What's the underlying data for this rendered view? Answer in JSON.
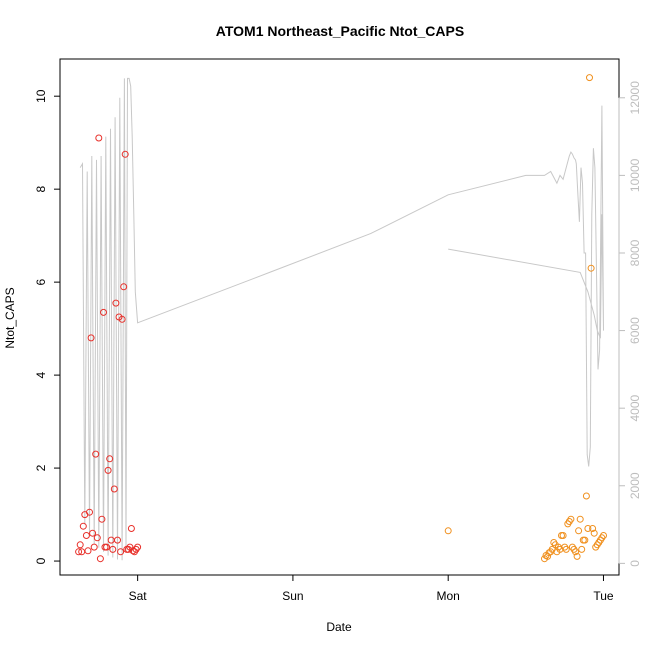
{
  "chart_data": {
    "type": "scatter",
    "title": "ATOM1 Northeast_Pacific Ntot_CAPS",
    "xlabel": "Date",
    "ylabel": "Ntot_CAPS",
    "x_ticks": [
      {
        "label": "Sat",
        "day": 1
      },
      {
        "label": "Sun",
        "day": 2
      },
      {
        "label": "Mon",
        "day": 3
      },
      {
        "label": "Tue",
        "day": 4
      }
    ],
    "xlim_days": [
      0.5,
      4.1
    ],
    "ylim_left": [
      -0.3,
      10.8
    ],
    "y_ticks_left": [
      0,
      2,
      4,
      6,
      8,
      10
    ],
    "ylim_right": [
      -300,
      13000
    ],
    "y_ticks_right": [
      0,
      2000,
      4000,
      6000,
      8000,
      10000,
      12000
    ],
    "colors": {
      "red": "#e8302a",
      "orange": "#f0901e",
      "line": "#c8c8c8",
      "right_axis": "#bdbdbd"
    },
    "series": [
      {
        "color": "red",
        "marker": "circle",
        "x_days": [
          0.62,
          0.63,
          0.64,
          0.65,
          0.66,
          0.67,
          0.68,
          0.69,
          0.7,
          0.71,
          0.72,
          0.73,
          0.74,
          0.75,
          0.76,
          0.77,
          0.78,
          0.79,
          0.8,
          0.81,
          0.82,
          0.83,
          0.84,
          0.85,
          0.86,
          0.87,
          0.88,
          0.89,
          0.9,
          0.91,
          0.92,
          0.93,
          0.94,
          0.95,
          0.96,
          0.97,
          0.98,
          0.99,
          1.0
        ],
        "values": [
          0.2,
          0.35,
          0.2,
          0.75,
          1.0,
          0.55,
          0.22,
          1.05,
          4.8,
          0.6,
          0.3,
          2.3,
          0.5,
          9.1,
          0.05,
          0.9,
          5.35,
          0.3,
          0.3,
          1.95,
          2.2,
          0.45,
          0.25,
          1.55,
          5.55,
          0.45,
          5.25,
          0.2,
          5.2,
          5.9,
          8.75,
          0.25,
          0.25,
          0.3,
          0.7,
          0.22,
          0.2,
          0.25,
          0.3
        ]
      },
      {
        "color": "orange",
        "marker": "circle",
        "x_days": [
          3.0,
          3.62,
          3.63,
          3.64,
          3.65,
          3.66,
          3.67,
          3.68,
          3.69,
          3.7,
          3.71,
          3.72,
          3.73,
          3.74,
          3.75,
          3.76,
          3.77,
          3.78,
          3.79,
          3.8,
          3.81,
          3.82,
          3.83,
          3.84,
          3.85,
          3.86,
          3.87,
          3.88,
          3.89,
          3.9,
          3.91,
          3.92,
          3.93,
          3.94,
          3.95,
          3.96,
          3.97,
          3.98,
          3.99,
          4.0
        ],
        "values": [
          0.65,
          0.05,
          0.12,
          0.1,
          0.18,
          0.2,
          0.25,
          0.4,
          0.35,
          0.2,
          0.3,
          0.25,
          0.55,
          0.55,
          0.3,
          0.25,
          0.8,
          0.85,
          0.9,
          0.3,
          0.25,
          0.2,
          0.1,
          0.65,
          0.9,
          0.25,
          0.45,
          0.45,
          1.4,
          0.7,
          10.4,
          6.3,
          0.7,
          0.6,
          0.3,
          0.35,
          0.4,
          0.45,
          0.5,
          0.55
        ]
      }
    ],
    "line_series": {
      "axis": "right",
      "color": "line",
      "x_days": [
        0.63,
        0.645,
        0.66,
        0.675,
        0.69,
        0.705,
        0.72,
        0.735,
        0.75,
        0.765,
        0.78,
        0.795,
        0.81,
        0.825,
        0.84,
        0.855,
        0.87,
        0.885,
        0.9,
        0.915,
        0.925,
        0.935,
        0.945,
        0.955,
        0.965,
        0.975,
        0.985,
        1.0,
        1.85,
        2.5,
        3.0,
        3.5,
        3.62,
        3.66,
        3.7,
        3.72,
        3.74,
        3.76,
        3.78,
        3.79,
        3.8,
        3.81,
        3.82,
        3.825,
        3.835,
        3.845,
        3.855,
        3.865,
        3.875,
        3.885,
        3.895,
        3.905,
        3.915,
        3.925,
        3.935,
        3.945,
        3.955,
        3.965,
        3.975,
        3.99,
        4.0,
        3.99,
        3.98,
        3.96,
        3.94,
        3.9,
        3.85,
        3.0
      ],
      "values": [
        10200,
        10300,
        1000,
        10100,
        700,
        10500,
        500,
        10400,
        400,
        10500,
        300,
        11000,
        200,
        11200,
        150,
        11500,
        100,
        12000,
        80,
        12500,
        300,
        12500,
        12500,
        12300,
        11000,
        9000,
        7000,
        6200,
        7500,
        8500,
        9500,
        10000,
        10000,
        10100,
        9800,
        10000,
        9900,
        10200,
        10500,
        10600,
        10550,
        10450,
        10400,
        10300,
        9500,
        8800,
        10200,
        9800,
        8000,
        8000,
        2800,
        2500,
        3000,
        9000,
        10700,
        10200,
        7500,
        5000,
        5500,
        11800,
        6000,
        9000,
        5800,
        6000,
        6400,
        7000,
        7500,
        8100
      ]
    }
  }
}
